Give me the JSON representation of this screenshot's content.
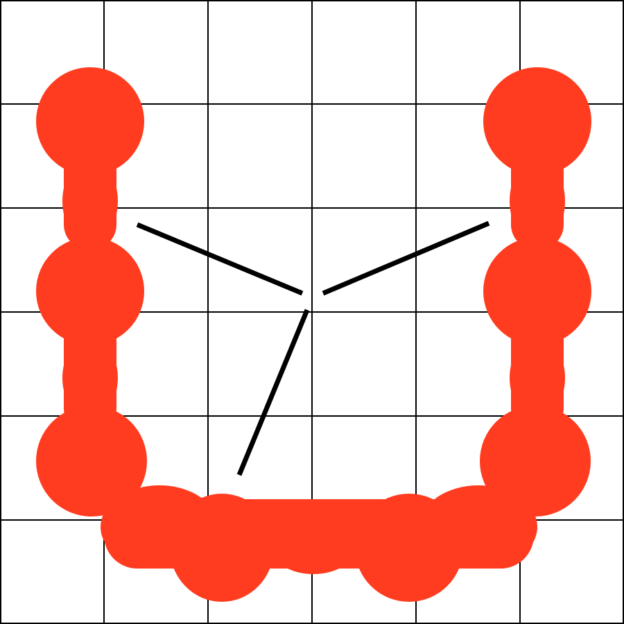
{
  "colors": {
    "background": "#ffffff",
    "grid": "#000000",
    "blob": "#ff3c1f",
    "strokes": "#000000"
  },
  "grid": {
    "columns": 6,
    "rows": 6
  },
  "shape": {
    "name": "red-u-shaped-blob",
    "description_icon": "blob-chain-icon"
  },
  "lines": {
    "count": 3
  }
}
